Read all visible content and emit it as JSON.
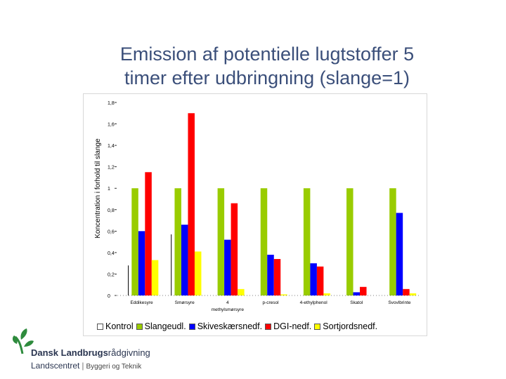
{
  "slide": {
    "title_line1": "Emission af potentielle lugtstoffer 5",
    "title_line2": "timer efter udbringning (slange=1)"
  },
  "chart_data": {
    "type": "bar",
    "ylabel": "Koncentration i forhold til slange",
    "ylim": [
      0,
      1.8
    ],
    "yticks": [
      "0",
      "0,2",
      "0,4",
      "0,6",
      "0,8",
      "1",
      "1,2",
      "1,4",
      "1,6",
      "1,8"
    ],
    "categories": [
      "Eddikesyre",
      "Smørsyre",
      "4-methylsmørsyre",
      "p-cresol",
      "4-ethylphenol",
      "Skatol",
      "Svovlbrinte"
    ],
    "category_labels": [
      [
        "Eddikesyre"
      ],
      [
        "Smørsyre"
      ],
      [
        "4",
        "methylsmørsyre"
      ],
      [
        "p-cresol"
      ],
      [
        "4-ethylphenol"
      ],
      [
        "Skatol"
      ],
      [
        "Svovlbrinte"
      ]
    ],
    "series": [
      {
        "name": "Kontrol",
        "color": "#ffffff",
        "values": [
          0.28,
          0.57,
          0.0,
          0.0,
          0.0,
          0.0,
          0.0
        ]
      },
      {
        "name": "Slangeudl.",
        "color": "#99cc00",
        "values": [
          1.0,
          1.0,
          1.0,
          1.0,
          1.0,
          1.0,
          1.0
        ]
      },
      {
        "name": "Skiveskærsnedf.",
        "color": "#0000ff",
        "values": [
          0.6,
          0.66,
          0.52,
          0.38,
          0.3,
          0.03,
          0.77
        ]
      },
      {
        "name": "DGI-nedf.",
        "color": "#ff0000",
        "values": [
          1.15,
          1.7,
          0.86,
          0.34,
          0.27,
          0.08,
          0.06
        ]
      },
      {
        "name": "Sortjordsnedf.",
        "color": "#ffff00",
        "values": [
          0.33,
          0.41,
          0.06,
          0.01,
          0.02,
          0.0,
          0.02
        ]
      }
    ]
  },
  "logo": {
    "line1_a": "Dansk Landbrugs",
    "line1_b": "rådgivning",
    "line2_a": "Landscentret",
    "line2_sep": "|",
    "line2_b": "Byggeri og Teknik"
  }
}
